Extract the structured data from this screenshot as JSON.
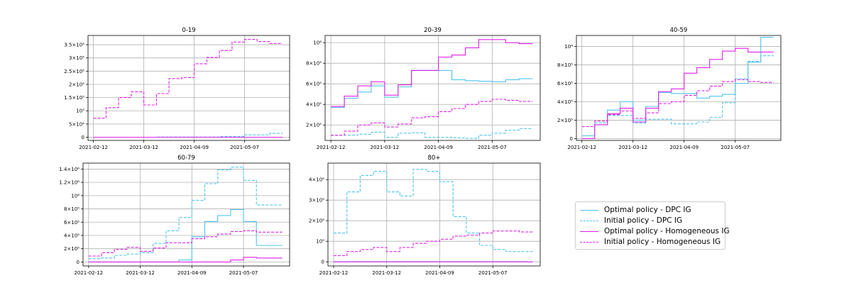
{
  "colors": {
    "dpc": "#4fc4ee",
    "homogeneous": "#e020e8",
    "grid": "#b0b0b0"
  },
  "legend": {
    "items": [
      {
        "label": "Optimal policy - DPC IG",
        "color": "#4fc4ee",
        "dash": "solid"
      },
      {
        "label": "Initial policy - DPC IG",
        "color": "#4fc4ee",
        "dash": "dashed"
      },
      {
        "label": "Optimal policy - Homogeneous IG",
        "color": "#e020e8",
        "dash": "solid"
      },
      {
        "label": "Initial policy - Homogeneous IG",
        "color": "#e020e8",
        "dash": "dashed"
      }
    ]
  },
  "chart_data": [
    {
      "type": "line",
      "title": "0-19",
      "x_ticks": [
        "2021-02-12",
        "2021-03-12",
        "2021-04-09",
        "2021-05-07"
      ],
      "y_ticks": [
        {
          "v": 0,
          "label": "0"
        },
        {
          "v": 50000,
          "label": "5×10⁴"
        },
        {
          "v": 100000,
          "label": "10⁵"
        },
        {
          "v": 150000,
          "label": "1.5×10⁵"
        },
        {
          "v": 200000,
          "label": "2×10⁵"
        },
        {
          "v": 250000,
          "label": "2.5×10⁵"
        },
        {
          "v": 300000,
          "label": "3×10⁵"
        },
        {
          "v": 350000,
          "label": "3.5×10⁵"
        }
      ],
      "ylim": [
        -12000,
        385000
      ],
      "series": [
        {
          "name": "Optimal policy - DPC IG",
          "color": "#4fc4ee",
          "dash": "solid",
          "x": [
            0,
            105
          ],
          "y": [
            0,
            0
          ]
        },
        {
          "name": "Initial policy - DPC IG",
          "color": "#4fc4ee",
          "dash": "dashed",
          "x": [
            0,
            35,
            70,
            84,
            98,
            105
          ],
          "y": [
            0,
            1000,
            3000,
            9000,
            15000,
            15000
          ]
        },
        {
          "name": "Optimal policy - Homogeneous IG",
          "color": "#e020e8",
          "dash": "solid",
          "x": [
            0,
            105
          ],
          "y": [
            0,
            0
          ]
        },
        {
          "name": "Initial policy - Homogeneous IG",
          "color": "#e020e8",
          "dash": "dashed",
          "x": [
            0,
            7,
            14,
            21,
            28,
            35,
            42,
            49,
            56,
            63,
            70,
            77,
            84,
            91,
            98,
            105
          ],
          "y": [
            72000,
            112000,
            150000,
            172000,
            122000,
            165000,
            222000,
            226000,
            278000,
            302000,
            328000,
            360000,
            370000,
            362000,
            355000,
            355000
          ]
        }
      ]
    },
    {
      "type": "line",
      "title": "20-39",
      "x_ticks": [
        "2021-02-12",
        "2021-03-12",
        "2021-04-09",
        "2021-05-07"
      ],
      "y_ticks": [
        {
          "v": 200000,
          "label": "2×10⁵"
        },
        {
          "v": 400000,
          "label": "4×10⁵"
        },
        {
          "v": 600000,
          "label": "6×10⁵"
        },
        {
          "v": 800000,
          "label": "8×10⁵"
        },
        {
          "v": 1000000,
          "label": "10⁶"
        }
      ],
      "ylim": [
        50000,
        1070000
      ],
      "series": [
        {
          "name": "Optimal policy - DPC IG",
          "color": "#4fc4ee",
          "dash": "solid",
          "x": [
            0,
            7,
            14,
            21,
            28,
            35,
            42,
            49,
            56,
            63,
            70,
            77,
            84,
            91,
            98,
            105
          ],
          "y": [
            370000,
            460000,
            520000,
            580000,
            470000,
            570000,
            730000,
            730000,
            730000,
            640000,
            630000,
            625000,
            620000,
            640000,
            650000,
            650000
          ]
        },
        {
          "name": "Initial policy - DPC IG",
          "color": "#4fc4ee",
          "dash": "dashed",
          "x": [
            0,
            7,
            14,
            21,
            28,
            35,
            42,
            49,
            56,
            63,
            70,
            77,
            84,
            91,
            98,
            105
          ],
          "y": [
            100000,
            100000,
            110000,
            130000,
            80000,
            120000,
            125000,
            80000,
            80000,
            75000,
            70000,
            100000,
            120000,
            150000,
            165000,
            165000
          ]
        },
        {
          "name": "Optimal policy - Homogeneous IG",
          "color": "#e020e8",
          "dash": "solid",
          "x": [
            0,
            7,
            14,
            21,
            28,
            35,
            42,
            49,
            56,
            63,
            70,
            77,
            84,
            91,
            98,
            105
          ],
          "y": [
            380000,
            480000,
            580000,
            620000,
            490000,
            590000,
            730000,
            730000,
            860000,
            880000,
            950000,
            1030000,
            1030000,
            1000000,
            990000,
            990000
          ]
        },
        {
          "name": "Initial policy - Homogeneous IG",
          "color": "#e020e8",
          "dash": "dashed",
          "x": [
            0,
            7,
            14,
            21,
            28,
            35,
            42,
            49,
            56,
            63,
            70,
            77,
            84,
            91,
            98,
            105
          ],
          "y": [
            100000,
            140000,
            200000,
            220000,
            180000,
            210000,
            270000,
            280000,
            330000,
            360000,
            400000,
            430000,
            450000,
            440000,
            430000,
            430000
          ]
        }
      ]
    },
    {
      "type": "line",
      "title": "40-59",
      "x_ticks": [
        "2021-02-12",
        "2021-03-12",
        "2021-04-09",
        "2021-05-07"
      ],
      "y_ticks": [
        {
          "v": 0,
          "label": "0"
        },
        {
          "v": 200000,
          "label": "2×10⁵"
        },
        {
          "v": 400000,
          "label": "4×10⁵"
        },
        {
          "v": 600000,
          "label": "6×10⁵"
        },
        {
          "v": 800000,
          "label": "8×10⁵"
        },
        {
          "v": 1000000,
          "label": "10⁶"
        }
      ],
      "ylim": [
        -20000,
        1120000
      ],
      "series": [
        {
          "name": "Optimal policy - DPC IG",
          "color": "#4fc4ee",
          "dash": "solid",
          "x": [
            0,
            7,
            14,
            21,
            28,
            35,
            42,
            49,
            56,
            63,
            70,
            77,
            84,
            91,
            98,
            105
          ],
          "y": [
            30000,
            150000,
            310000,
            400000,
            200000,
            350000,
            500000,
            490000,
            490000,
            440000,
            460000,
            480000,
            600000,
            830000,
            1100000,
            1100000
          ]
        },
        {
          "name": "Initial policy - DPC IG",
          "color": "#4fc4ee",
          "dash": "dashed",
          "x": [
            0,
            7,
            14,
            21,
            28,
            35,
            42,
            49,
            56,
            63,
            70,
            77,
            84,
            91,
            98,
            105
          ],
          "y": [
            30000,
            170000,
            250000,
            250000,
            170000,
            210000,
            210000,
            160000,
            160000,
            180000,
            230000,
            390000,
            650000,
            840000,
            900000,
            900000
          ]
        },
        {
          "name": "Optimal policy - Homogeneous IG",
          "color": "#e020e8",
          "dash": "solid",
          "x": [
            0,
            7,
            14,
            21,
            28,
            35,
            42,
            49,
            56,
            63,
            70,
            77,
            84,
            91,
            98,
            105
          ],
          "y": [
            0,
            150000,
            270000,
            330000,
            180000,
            330000,
            510000,
            540000,
            710000,
            770000,
            860000,
            950000,
            980000,
            940000,
            940000,
            940000
          ]
        },
        {
          "name": "Initial policy - Homogeneous IG",
          "color": "#e020e8",
          "dash": "dashed",
          "x": [
            0,
            7,
            14,
            21,
            28,
            35,
            42,
            49,
            56,
            63,
            70,
            77,
            84,
            91,
            98,
            105
          ],
          "y": [
            130000,
            190000,
            260000,
            300000,
            220000,
            280000,
            380000,
            400000,
            470000,
            520000,
            570000,
            620000,
            640000,
            620000,
            610000,
            610000
          ]
        }
      ]
    },
    {
      "type": "line",
      "title": "60-79",
      "x_ticks": [
        "2021-02-12",
        "2021-03-12",
        "2021-04-09",
        "2021-05-07"
      ],
      "y_ticks": [
        {
          "v": 0,
          "label": "0"
        },
        {
          "v": 200000,
          "label": "2×10⁵"
        },
        {
          "v": 400000,
          "label": "4×10⁵"
        },
        {
          "v": 600000,
          "label": "6×10⁵"
        },
        {
          "v": 800000,
          "label": "8×10⁵"
        },
        {
          "v": 1000000,
          "label": "10⁶"
        },
        {
          "v": 1200000,
          "label": "1.2×10⁶"
        },
        {
          "v": 1400000,
          "label": "1.4×10⁶"
        }
      ],
      "ylim": [
        -60000,
        1490000
      ],
      "series": [
        {
          "name": "Optimal policy - DPC IG",
          "color": "#4fc4ee",
          "dash": "solid",
          "x": [
            0,
            42,
            49,
            56,
            63,
            70,
            77,
            84,
            91,
            98,
            105
          ],
          "y": [
            0,
            0,
            30000,
            380000,
            610000,
            700000,
            790000,
            610000,
            250000,
            250000,
            250000
          ]
        },
        {
          "name": "Initial policy - DPC IG",
          "color": "#4fc4ee",
          "dash": "dashed",
          "x": [
            0,
            7,
            14,
            21,
            28,
            35,
            42,
            49,
            56,
            63,
            70,
            77,
            84,
            91,
            98,
            105
          ],
          "y": [
            50000,
            60000,
            100000,
            120000,
            140000,
            280000,
            470000,
            670000,
            930000,
            1180000,
            1390000,
            1430000,
            1230000,
            860000,
            860000,
            860000
          ]
        },
        {
          "name": "Optimal policy - Homogeneous IG",
          "color": "#e020e8",
          "dash": "solid",
          "x": [
            0,
            70,
            77,
            84,
            91,
            98,
            105
          ],
          "y": [
            0,
            0,
            30000,
            70000,
            60000,
            60000,
            60000
          ]
        },
        {
          "name": "Initial policy - Homogeneous IG",
          "color": "#e020e8",
          "dash": "dashed",
          "x": [
            0,
            7,
            14,
            21,
            28,
            35,
            42,
            49,
            56,
            63,
            70,
            77,
            84,
            91,
            98,
            105
          ],
          "y": [
            90000,
            140000,
            190000,
            220000,
            160000,
            210000,
            290000,
            290000,
            350000,
            380000,
            420000,
            460000,
            470000,
            450000,
            450000,
            450000
          ]
        }
      ]
    },
    {
      "type": "line",
      "title": "80+",
      "x_ticks": [
        "2021-02-12",
        "2021-03-12",
        "2021-04-09",
        "2021-05-07"
      ],
      "y_ticks": [
        {
          "v": 0,
          "label": "0"
        },
        {
          "v": 100000,
          "label": "10⁵"
        },
        {
          "v": 200000,
          "label": "2×10⁵"
        },
        {
          "v": 300000,
          "label": "3×10⁵"
        },
        {
          "v": 400000,
          "label": "4×10⁵"
        }
      ],
      "ylim": [
        -20000,
        480000
      ],
      "series": [
        {
          "name": "Optimal policy - DPC IG",
          "color": "#4fc4ee",
          "dash": "solid",
          "x": [
            0,
            105
          ],
          "y": [
            0,
            0
          ]
        },
        {
          "name": "Initial policy - DPC IG",
          "color": "#4fc4ee",
          "dash": "dashed",
          "x": [
            0,
            7,
            14,
            21,
            28,
            35,
            42,
            49,
            56,
            63,
            70,
            77,
            84,
            91,
            98,
            105
          ],
          "y": [
            140000,
            340000,
            420000,
            440000,
            340000,
            320000,
            450000,
            440000,
            390000,
            220000,
            140000,
            80000,
            60000,
            50000,
            50000,
            50000
          ]
        },
        {
          "name": "Optimal policy - Homogeneous IG",
          "color": "#e020e8",
          "dash": "solid",
          "x": [
            0,
            105
          ],
          "y": [
            0,
            0
          ]
        },
        {
          "name": "Initial policy - Homogeneous IG",
          "color": "#e020e8",
          "dash": "dashed",
          "x": [
            0,
            7,
            14,
            21,
            28,
            35,
            42,
            49,
            56,
            63,
            70,
            77,
            84,
            91,
            98,
            105
          ],
          "y": [
            30000,
            50000,
            60000,
            70000,
            50000,
            70000,
            90000,
            100000,
            110000,
            125000,
            130000,
            140000,
            150000,
            150000,
            145000,
            145000
          ]
        }
      ]
    }
  ]
}
